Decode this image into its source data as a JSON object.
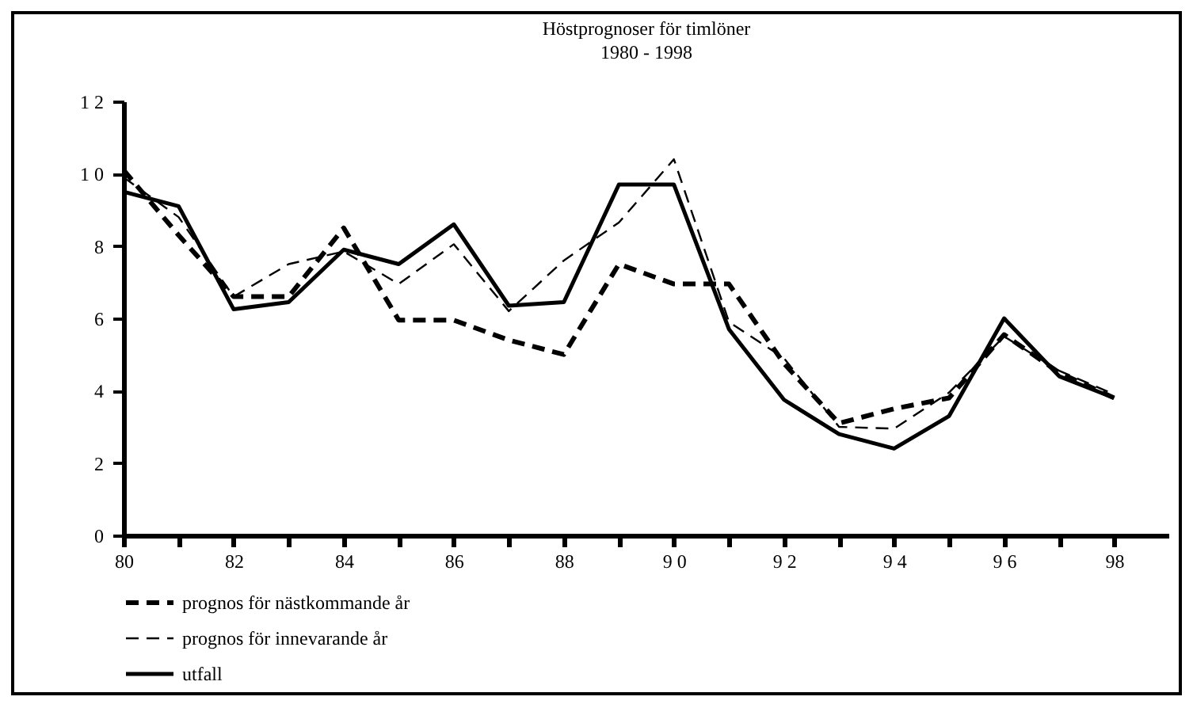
{
  "chart_data": {
    "type": "line",
    "title": "Höstprognoser för timlöner",
    "subtitle": "1980 - 1998",
    "x": [
      1980,
      1981,
      1982,
      1983,
      1984,
      1985,
      1986,
      1987,
      1988,
      1989,
      1990,
      1991,
      1992,
      1993,
      1994,
      1995,
      1996,
      1997,
      1998
    ],
    "series": [
      {
        "name": "prognos för nästkommande år",
        "color": "#000000",
        "line_style": "dashed",
        "values": [
          10.1,
          8.3,
          6.6,
          6.6,
          8.5,
          5.95,
          5.95,
          5.4,
          5.0,
          7.5,
          6.95,
          6.95,
          4.75,
          3.1,
          3.5,
          3.8,
          5.55,
          4.5,
          3.8
        ]
      },
      {
        "name": "prognos för innevarande år",
        "color": "#000000",
        "line_style": "dashed",
        "values": [
          9.9,
          8.8,
          6.6,
          7.5,
          7.85,
          6.95,
          8.05,
          6.2,
          7.6,
          8.65,
          10.4,
          5.9,
          4.9,
          3.0,
          2.95,
          3.95,
          5.5,
          4.55,
          3.9
        ]
      },
      {
        "name": "utfall",
        "color": "#000000",
        "line_style": "solid",
        "values": [
          9.5,
          9.1,
          6.25,
          6.45,
          7.9,
          7.5,
          8.6,
          6.35,
          6.45,
          9.7,
          9.7,
          5.7,
          3.75,
          2.8,
          2.4,
          3.3,
          6.0,
          4.4,
          3.8
        ]
      }
    ],
    "xlim": [
      1980,
      1999
    ],
    "xticks": [
      {
        "value": 1980,
        "label": "80"
      },
      {
        "value": 1981,
        "label": null
      },
      {
        "value": 1982,
        "label": "82"
      },
      {
        "value": 1983,
        "label": null
      },
      {
        "value": 1984,
        "label": "84"
      },
      {
        "value": 1985,
        "label": null
      },
      {
        "value": 1986,
        "label": "86"
      },
      {
        "value": 1987,
        "label": null
      },
      {
        "value": 1988,
        "label": "88"
      },
      {
        "value": 1989,
        "label": null
      },
      {
        "value": 1990,
        "label": "9 0"
      },
      {
        "value": 1991,
        "label": null
      },
      {
        "value": 1992,
        "label": "9 2"
      },
      {
        "value": 1993,
        "label": null
      },
      {
        "value": 1994,
        "label": "9 4"
      },
      {
        "value": 1995,
        "label": null
      },
      {
        "value": 1996,
        "label": "9 6"
      },
      {
        "value": 1997,
        "label": null
      },
      {
        "value": 1998,
        "label": "98"
      }
    ],
    "ylim": [
      0,
      12
    ],
    "yticks": [
      0,
      2,
      4,
      6,
      8,
      {
        "value": 10,
        "label": "1 0"
      },
      {
        "value": 12,
        "label": "1 2"
      }
    ],
    "grid": false,
    "legend": "bottom left",
    "marker": "none"
  }
}
